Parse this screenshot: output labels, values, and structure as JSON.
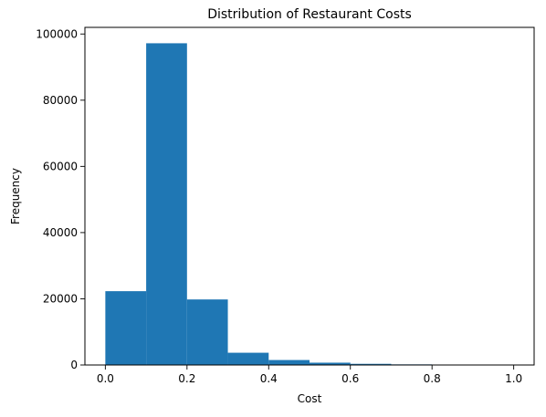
{
  "chart_data": {
    "type": "bar",
    "title": "Distribution of Restaurant Costs",
    "xlabel": "Cost",
    "ylabel": "Frequency",
    "bins": [
      {
        "x0": 0.0,
        "x1": 0.1,
        "value": 22300
      },
      {
        "x0": 0.1,
        "x1": 0.2,
        "value": 97200
      },
      {
        "x0": 0.2,
        "x1": 0.3,
        "value": 19800
      },
      {
        "x0": 0.3,
        "x1": 0.4,
        "value": 3700
      },
      {
        "x0": 0.4,
        "x1": 0.5,
        "value": 1500
      },
      {
        "x0": 0.5,
        "x1": 0.6,
        "value": 700
      },
      {
        "x0": 0.6,
        "x1": 0.7,
        "value": 350
      },
      {
        "x0": 0.7,
        "x1": 0.8,
        "value": 180
      },
      {
        "x0": 0.8,
        "x1": 0.9,
        "value": 90
      },
      {
        "x0": 0.9,
        "x1": 1.0,
        "value": 50
      }
    ],
    "xlim": [
      -0.05,
      1.05
    ],
    "ylim": [
      0,
      102000
    ],
    "xticks": [
      {
        "value": 0.0,
        "label": "0.0"
      },
      {
        "value": 0.2,
        "label": "0.2"
      },
      {
        "value": 0.4,
        "label": "0.4"
      },
      {
        "value": 0.6,
        "label": "0.6"
      },
      {
        "value": 0.8,
        "label": "0.8"
      },
      {
        "value": 1.0,
        "label": "1.0"
      }
    ],
    "yticks": [
      {
        "value": 0,
        "label": "0"
      },
      {
        "value": 20000,
        "label": "20000"
      },
      {
        "value": 40000,
        "label": "40000"
      },
      {
        "value": 60000,
        "label": "60000"
      },
      {
        "value": 80000,
        "label": "80000"
      },
      {
        "value": 100000,
        "label": "100000"
      }
    ],
    "bar_color": "#1f77b4",
    "grid": false,
    "legend": "none"
  }
}
